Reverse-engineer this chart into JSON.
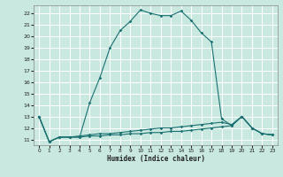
{
  "title": "",
  "xlabel": "Humidex (Indice chaleur)",
  "ylabel": "",
  "bg_color": "#c8e8e0",
  "grid_color": "#ffffff",
  "line_color": "#1a7070",
  "xlim": [
    -0.5,
    23.5
  ],
  "ylim": [
    10.5,
    22.7
  ],
  "yticks": [
    11,
    12,
    13,
    14,
    15,
    16,
    17,
    18,
    19,
    20,
    21,
    22
  ],
  "xticks": [
    0,
    1,
    2,
    3,
    4,
    5,
    6,
    7,
    8,
    9,
    10,
    11,
    12,
    13,
    14,
    15,
    16,
    17,
    18,
    19,
    20,
    21,
    22,
    23
  ],
  "series1": [
    [
      0,
      13.0
    ],
    [
      1,
      10.8
    ],
    [
      2,
      11.2
    ],
    [
      3,
      11.2
    ],
    [
      4,
      11.2
    ],
    [
      5,
      14.2
    ],
    [
      6,
      16.4
    ],
    [
      7,
      19.0
    ],
    [
      8,
      20.5
    ],
    [
      9,
      21.3
    ],
    [
      10,
      22.3
    ],
    [
      11,
      22.0
    ],
    [
      12,
      21.8
    ],
    [
      13,
      21.8
    ],
    [
      14,
      22.2
    ],
    [
      15,
      21.4
    ],
    [
      16,
      20.3
    ],
    [
      17,
      19.5
    ],
    [
      18,
      12.8
    ],
    [
      19,
      12.2
    ],
    [
      20,
      13.0
    ],
    [
      21,
      12.0
    ],
    [
      22,
      11.5
    ],
    [
      23,
      11.4
    ]
  ],
  "series2": [
    [
      0,
      13.0
    ],
    [
      1,
      10.8
    ],
    [
      2,
      11.2
    ],
    [
      3,
      11.2
    ],
    [
      4,
      11.3
    ],
    [
      5,
      11.4
    ],
    [
      6,
      11.5
    ],
    [
      7,
      11.5
    ],
    [
      8,
      11.6
    ],
    [
      9,
      11.7
    ],
    [
      10,
      11.8
    ],
    [
      11,
      11.9
    ],
    [
      12,
      12.0
    ],
    [
      13,
      12.0
    ],
    [
      14,
      12.1
    ],
    [
      15,
      12.2
    ],
    [
      16,
      12.3
    ],
    [
      17,
      12.4
    ],
    [
      18,
      12.5
    ],
    [
      19,
      12.3
    ],
    [
      20,
      13.0
    ],
    [
      21,
      12.0
    ],
    [
      22,
      11.5
    ],
    [
      23,
      11.4
    ]
  ],
  "series3": [
    [
      0,
      13.0
    ],
    [
      1,
      10.8
    ],
    [
      2,
      11.2
    ],
    [
      3,
      11.2
    ],
    [
      4,
      11.2
    ],
    [
      5,
      11.3
    ],
    [
      6,
      11.3
    ],
    [
      7,
      11.4
    ],
    [
      8,
      11.4
    ],
    [
      9,
      11.5
    ],
    [
      10,
      11.5
    ],
    [
      11,
      11.6
    ],
    [
      12,
      11.6
    ],
    [
      13,
      11.7
    ],
    [
      14,
      11.7
    ],
    [
      15,
      11.8
    ],
    [
      16,
      11.9
    ],
    [
      17,
      12.0
    ],
    [
      18,
      12.1
    ],
    [
      19,
      12.2
    ],
    [
      20,
      13.0
    ],
    [
      21,
      12.0
    ],
    [
      22,
      11.5
    ],
    [
      23,
      11.4
    ]
  ]
}
